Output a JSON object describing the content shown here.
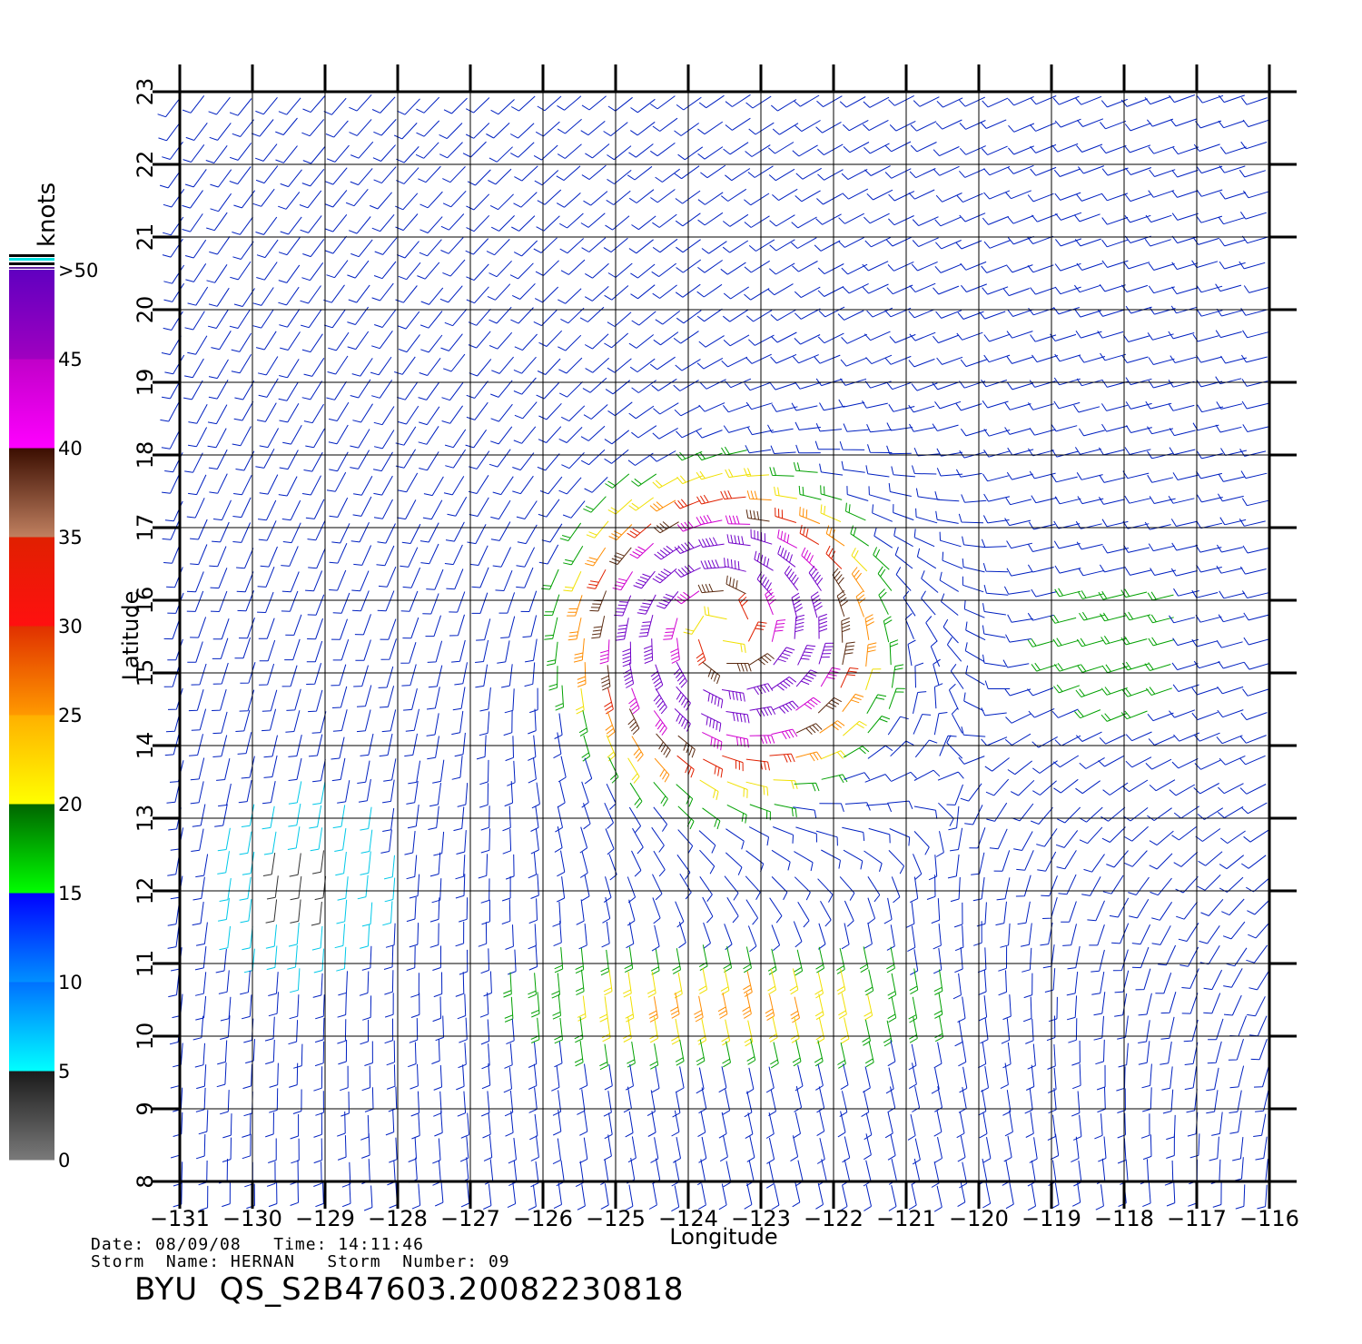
{
  "map": {
    "x_axis_label": "Longitude",
    "y_axis_label": "Latitude",
    "x_ticks": [
      "−131",
      "−130",
      "−129",
      "−128",
      "−127",
      "−126",
      "−125",
      "−124",
      "−123",
      "−122",
      "−121",
      "−120",
      "−119",
      "−118",
      "−117",
      "−116"
    ],
    "y_ticks": [
      "8",
      "9",
      "10",
      "11",
      "12",
      "13",
      "14",
      "15",
      "16",
      "17",
      "18",
      "19",
      "20",
      "21",
      "22",
      "23"
    ],
    "lon_range": [
      -131,
      -116
    ],
    "lat_range": [
      8,
      23
    ],
    "grid": true,
    "storm_center": {
      "lon": -123.5,
      "lat": 15.6
    }
  },
  "colorbar": {
    "unit": "knots",
    "labels": [
      ">50",
      "45",
      "40",
      "35",
      "30",
      "25",
      "20",
      "15",
      "10",
      "5",
      "0"
    ],
    "bands": [
      {
        "range": "0-5",
        "colors": [
          "#7a7a7a",
          "#1a1a1a"
        ]
      },
      {
        "range": "5-10",
        "colors": [
          "#00ffff",
          "#0070ff"
        ]
      },
      {
        "range": "10-15",
        "colors": [
          "#0090ff",
          "#0000ff"
        ]
      },
      {
        "range": "15-20",
        "colors": [
          "#00ff00",
          "#006400"
        ]
      },
      {
        "range": "20-25",
        "colors": [
          "#ffff00",
          "#ffb000"
        ]
      },
      {
        "range": "25-30",
        "colors": [
          "#ff9900",
          "#e03000"
        ]
      },
      {
        "range": "30-35",
        "colors": [
          "#ff1010",
          "#e02000"
        ]
      },
      {
        "range": "35-40",
        "colors": [
          "#c08060",
          "#3a0d00"
        ]
      },
      {
        "range": "40-45",
        "colors": [
          "#ff00ff",
          "#c000c8"
        ]
      },
      {
        "range": "45-50",
        "colors": [
          "#a000c0",
          "#6000c0"
        ]
      }
    ]
  },
  "info": {
    "date_line": "Date: 08/09/08   Time: 14:11:46",
    "storm_line": "Storm  Name: HERNAN   Storm  Number: 09",
    "title": "BYU  QS_S2B47603.20082230818"
  },
  "colors": {
    "calm": "#333333",
    "light": "#00c8e8",
    "blue": "#0020c0",
    "green": "#00a000",
    "yellow": "#f0e000",
    "orange": "#ff8c00",
    "red": "#e02000",
    "brown": "#5a2a10",
    "magenta": "#d000d0",
    "purple": "#7000c8"
  }
}
